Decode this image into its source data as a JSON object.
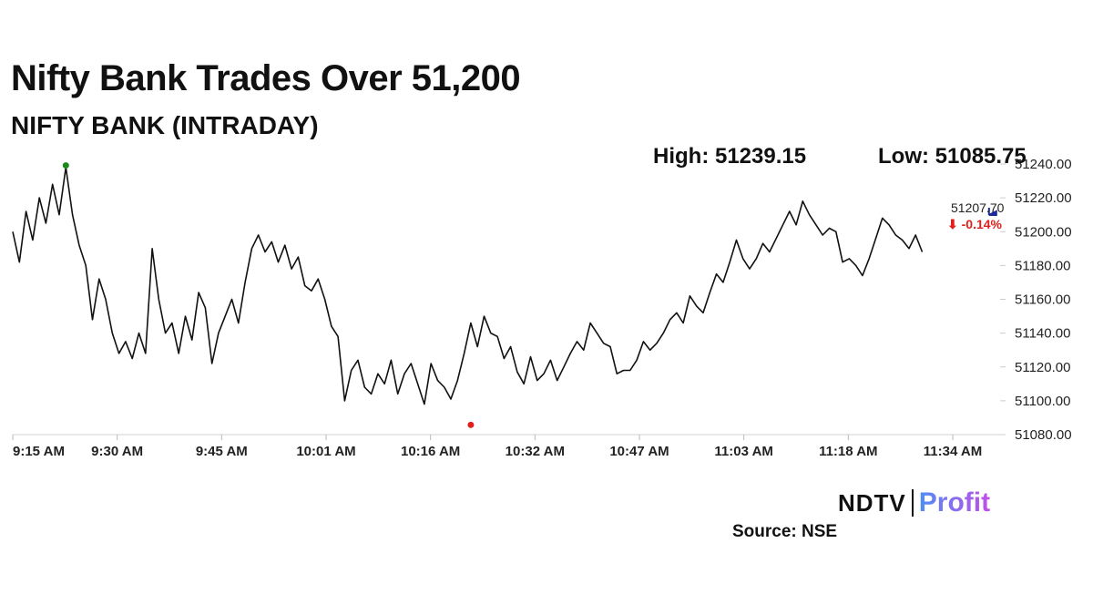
{
  "title": "Nifty Bank Trades Over 51,200",
  "subtitle": "NIFTY BANK (INTRADAY)",
  "stats": {
    "high": "High: 51239.15",
    "low": "Low: 51085.75"
  },
  "last": {
    "value": "51207.70",
    "change": "⬇ -0.14%",
    "change_color": "#e0201b"
  },
  "source": "Source: NSE",
  "logo": {
    "left": "NDTV",
    "right": "Profit"
  },
  "colors": {
    "line": "#111111",
    "high_marker": "#1a8a1a",
    "low_marker": "#e0201b",
    "last_marker": "#1a2a9c"
  },
  "chart_data": {
    "type": "line",
    "title": "NIFTY BANK (INTRADAY)",
    "x_ticks": [
      "9:15 AM",
      "9:30 AM",
      "9:45 AM",
      "10:01 AM",
      "10:16 AM",
      "10:32 AM",
      "10:47 AM",
      "11:03 AM",
      "11:18 AM",
      "11:34 AM"
    ],
    "y_ticks": [
      "51080.00",
      "51100.00",
      "51120.00",
      "51140.00",
      "51160.00",
      "51180.00",
      "51200.00",
      "51220.00",
      "51240.00"
    ],
    "ylim": [
      51080,
      51240
    ],
    "xlim_minutes": [
      0,
      149
    ],
    "grid": false,
    "high_point": {
      "minutes": 8,
      "value": 51239.15
    },
    "low_point": {
      "minutes": 69,
      "value": 51085.75
    },
    "last_point": {
      "minutes": 138,
      "value": 51207.7
    },
    "series": [
      {
        "x_minutes": [
          0,
          1,
          2,
          3,
          4,
          5,
          6,
          7,
          8,
          9,
          10,
          11,
          12,
          13,
          14,
          15,
          16,
          17,
          18,
          19,
          20,
          21,
          22,
          23,
          24,
          25,
          26,
          27,
          28,
          29,
          30,
          31,
          32,
          33,
          34,
          35,
          36,
          37,
          38,
          39,
          40,
          41,
          42,
          43,
          44,
          45,
          46,
          47,
          48,
          49,
          50,
          51,
          52,
          53,
          54,
          55,
          56,
          57,
          58,
          59,
          60,
          61,
          62,
          63,
          64,
          65,
          66,
          67,
          68,
          69,
          70,
          71,
          72,
          73,
          74,
          75,
          76,
          77,
          78,
          79,
          80,
          81,
          82,
          83,
          84,
          85,
          86,
          87,
          88,
          89,
          90,
          91,
          92,
          93,
          94,
          95,
          96,
          97,
          98,
          99,
          100,
          101,
          102,
          103,
          104,
          105,
          106,
          107,
          108,
          109,
          110,
          111,
          112,
          113,
          114,
          115,
          116,
          117,
          118,
          119,
          120,
          121,
          122,
          123,
          124,
          125,
          126,
          127,
          128,
          129,
          130,
          131,
          132,
          133,
          134,
          135,
          136,
          137
        ],
        "values": [
          51200,
          51182,
          51212,
          51195,
          51220,
          51205,
          51228,
          51210,
          51238,
          51210,
          51192,
          51180,
          51148,
          51172,
          51160,
          51140,
          51128,
          51135,
          51125,
          51140,
          51128,
          51190,
          51160,
          51140,
          51146,
          51128,
          51150,
          51136,
          51164,
          51155,
          51122,
          51140,
          51150,
          51160,
          51146,
          51170,
          51190,
          51198,
          51188,
          51194,
          51182,
          51192,
          51178,
          51185,
          51168,
          51165,
          51172,
          51160,
          51144,
          51138,
          51100,
          51118,
          51124,
          51108,
          51104,
          51116,
          51110,
          51124,
          51104,
          51116,
          51122,
          51110,
          51098,
          51122,
          51112,
          51108,
          51101,
          51112,
          51128,
          51146,
          51132,
          51150,
          51140,
          51138,
          51125,
          51132,
          51117,
          51110,
          51126,
          51112,
          51116,
          51124,
          51112,
          51120,
          51128,
          51135,
          51130,
          51146,
          51140,
          51134,
          51132,
          51116,
          51118,
          51118,
          51124,
          51135,
          51130,
          51134,
          51140,
          51148,
          51152,
          51146,
          51162,
          51156,
          51152,
          51164,
          51175,
          51170,
          51182,
          51195,
          51184,
          51178,
          51184,
          51193,
          51188,
          51196,
          51204,
          51212,
          51204,
          51218,
          51210,
          51204,
          51198,
          51202,
          51200,
          51182,
          51184,
          51180,
          51174,
          51184,
          51196,
          51208,
          51204,
          51198,
          51195,
          51190,
          51198,
          51188
        ]
      }
    ]
  }
}
